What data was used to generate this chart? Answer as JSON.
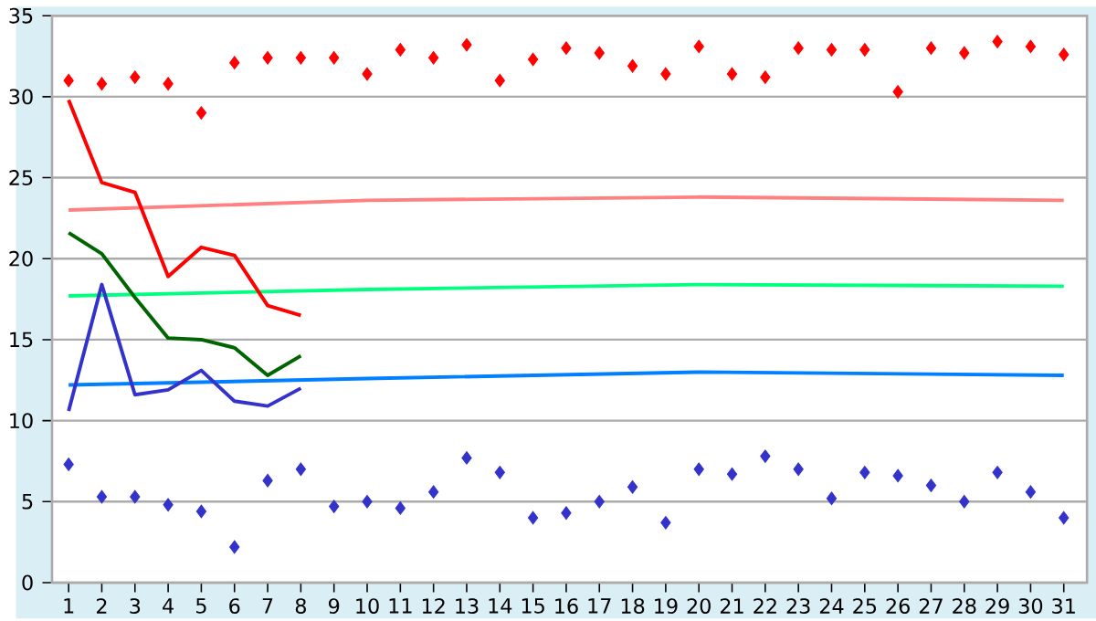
{
  "chart_data": {
    "type": "line",
    "x": [
      1,
      2,
      3,
      4,
      5,
      6,
      7,
      8,
      9,
      10,
      11,
      12,
      13,
      14,
      15,
      16,
      17,
      18,
      19,
      20,
      21,
      22,
      23,
      24,
      25,
      26,
      27,
      28,
      29,
      30,
      31
    ],
    "xlim": [
      0.5,
      31.7
    ],
    "xticks": [
      1,
      2,
      3,
      4,
      5,
      6,
      7,
      8,
      9,
      10,
      11,
      12,
      13,
      14,
      15,
      16,
      17,
      18,
      19,
      20,
      21,
      22,
      23,
      24,
      25,
      26,
      27,
      28,
      29,
      30,
      31
    ],
    "ylim": [
      0,
      35
    ],
    "yticks": [
      0,
      5,
      10,
      15,
      20,
      25,
      30,
      35
    ],
    "grid": "y",
    "series": [
      {
        "type": "scatter",
        "marker": "diamond",
        "color": "#ff0000",
        "values": [
          31.0,
          30.8,
          31.2,
          30.8,
          29.0,
          32.1,
          32.4,
          32.4,
          32.4,
          31.4,
          32.9,
          32.4,
          33.2,
          31.0,
          32.3,
          33.0,
          32.7,
          31.9,
          31.4,
          33.1,
          31.4,
          31.2,
          33.0,
          32.9,
          32.9,
          30.3,
          33.0,
          32.7,
          33.4,
          33.1,
          32.6
        ]
      },
      {
        "type": "scatter",
        "marker": "diamond",
        "color": "#3333cc",
        "values": [
          7.3,
          5.3,
          5.3,
          4.8,
          4.4,
          2.2,
          6.3,
          7.0,
          4.7,
          5.0,
          4.6,
          5.6,
          7.7,
          6.8,
          4.0,
          4.3,
          5.0,
          5.9,
          3.7,
          7.0,
          6.7,
          7.8,
          7.0,
          5.2,
          6.8,
          6.6,
          6.0,
          5.0,
          6.8,
          5.6,
          4.0
        ]
      },
      {
        "color": "#ff8080",
        "x": [
          1,
          10,
          20,
          31
        ],
        "values": [
          23.0,
          23.6,
          23.8,
          23.6
        ]
      },
      {
        "color": "#00ff80",
        "x": [
          1,
          10,
          20,
          31
        ],
        "values": [
          17.7,
          18.1,
          18.4,
          18.3
        ]
      },
      {
        "color": "#0080ff",
        "x": [
          1,
          10,
          20,
          31
        ],
        "values": [
          12.2,
          12.6,
          13.0,
          12.8
        ]
      },
      {
        "color": "#ff0000",
        "x": [
          1,
          2,
          3,
          4,
          5,
          6,
          7,
          8
        ],
        "values": [
          29.8,
          24.7,
          24.1,
          18.9,
          20.7,
          20.2,
          17.1,
          16.5
        ]
      },
      {
        "color": "#006400",
        "x": [
          1,
          2,
          3,
          4,
          5,
          6,
          7,
          8
        ],
        "values": [
          21.6,
          20.3,
          17.6,
          15.1,
          15.0,
          14.5,
          12.8,
          14.0
        ]
      },
      {
        "color": "#3333cc",
        "x": [
          1,
          2,
          3,
          4,
          5,
          6,
          7,
          8
        ],
        "values": [
          10.6,
          18.4,
          11.6,
          11.9,
          13.1,
          11.2,
          10.9,
          12.0
        ]
      }
    ]
  }
}
